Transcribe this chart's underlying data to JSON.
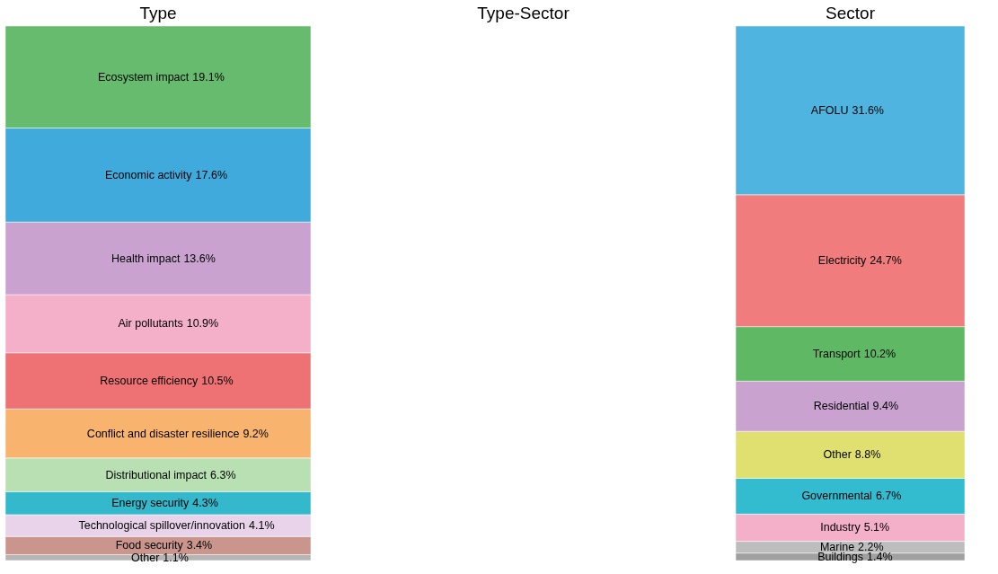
{
  "chart_data": [
    {
      "type": "bar",
      "stacked": true,
      "title": "Type",
      "categories": [
        null
      ],
      "data_labels": false,
      "series": [
        {
          "name": "Other",
          "color": "#b5b5b5",
          "values": [
            1.1
          ],
          "value_labels": [
            "1.1%"
          ]
        },
        {
          "name": "Food security",
          "color": "#c9958c",
          "values": [
            3.4
          ],
          "value_labels": [
            "3.4%"
          ]
        },
        {
          "name": "Technological spillover/innovation",
          "color": "#e8d3ea",
          "values": [
            4.1
          ],
          "value_labels": [
            "4.1%"
          ]
        },
        {
          "name": "Energy security",
          "color": "#33b8cc",
          "values": [
            4.3
          ],
          "value_labels": [
            "4.3%"
          ]
        },
        {
          "name": "Distributional impact",
          "color": "#b8e0b2",
          "values": [
            6.3
          ],
          "value_labels": [
            "6.3%"
          ]
        },
        {
          "name": "Conflict and disaster resilience",
          "color": "#f8b46e",
          "values": [
            9.2
          ],
          "value_labels": [
            "9.2%"
          ]
        },
        {
          "name": "Resource efficiency",
          "color": "#ee7274",
          "values": [
            10.5
          ],
          "value_labels": [
            "10.5%"
          ]
        },
        {
          "name": "Air pollutants",
          "color": "#f4b0c9",
          "values": [
            10.9
          ],
          "value_labels": [
            "10.9%"
          ]
        },
        {
          "name": "Health impact",
          "color": "#c9a2d0",
          "values": [
            13.6
          ],
          "value_labels": [
            "13.6%"
          ]
        },
        {
          "name": "Economic activity",
          "color": "#3faadb",
          "values": [
            17.6
          ],
          "value_labels": [
            "17.6%"
          ]
        },
        {
          "name": "Ecosystem impact",
          "color": "#66bb6e",
          "values": [
            19.1
          ],
          "value_labels": [
            "19.1%"
          ]
        }
      ]
    },
    {
      "type": "other",
      "title": "Type-Sector"
    },
    {
      "type": "bar",
      "stacked": true,
      "title": "Sector",
      "categories": [
        null
      ],
      "data_labels": false,
      "series": [
        {
          "name": "Buildings",
          "color": "#a0a0a0",
          "values": [
            1.4
          ],
          "value_labels": [
            "1.4%"
          ]
        },
        {
          "name": "Marine",
          "color": "#bdbdbd",
          "values": [
            2.2
          ],
          "value_labels": [
            "2.2%"
          ]
        },
        {
          "name": "Industry",
          "color": "#f4b0c9",
          "values": [
            5.1
          ],
          "value_labels": [
            "5.1%"
          ]
        },
        {
          "name": "Governmental",
          "color": "#33bccf",
          "values": [
            6.7
          ],
          "value_labels": [
            "6.7%"
          ]
        },
        {
          "name": "Other",
          "color": "#dfe070",
          "values": [
            8.8
          ],
          "value_labels": [
            "8.8%"
          ]
        },
        {
          "name": "Residential",
          "color": "#c9a2d0",
          "values": [
            9.4
          ],
          "value_labels": [
            "9.4%"
          ]
        },
        {
          "name": "Transport",
          "color": "#5fb964",
          "values": [
            10.2
          ],
          "value_labels": [
            "10.2%"
          ]
        },
        {
          "name": "Electricity",
          "color": "#f07c7e",
          "values": [
            24.7
          ],
          "value_labels": [
            "24.7%"
          ]
        },
        {
          "name": "AFOLU",
          "color": "#4fb4e0",
          "values": [
            31.6
          ],
          "value_labels": [
            "31.6%"
          ]
        }
      ]
    }
  ]
}
